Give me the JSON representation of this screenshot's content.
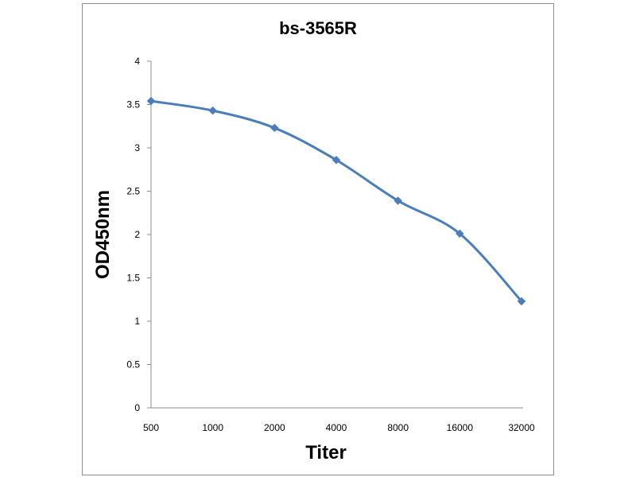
{
  "chart_data": {
    "type": "line",
    "title": "bs-3565R",
    "xlabel": "Titer",
    "ylabel": "OD450nm",
    "categories": [
      "500",
      "1000",
      "2000",
      "4000",
      "8000",
      "16000",
      "32000"
    ],
    "series": [
      {
        "values": [
          3.54,
          3.43,
          3.23,
          2.86,
          2.39,
          2.01,
          1.23
        ],
        "color": "#4a7ebb"
      }
    ],
    "ylim": [
      0,
      4
    ],
    "yticks": [
      "0",
      "0.5",
      "1",
      "1.5",
      "2",
      "2.5",
      "3",
      "3.5",
      "4"
    ],
    "grid": false,
    "legend": "none",
    "marker": "diamond",
    "axis_color": "#8c8c8c"
  }
}
